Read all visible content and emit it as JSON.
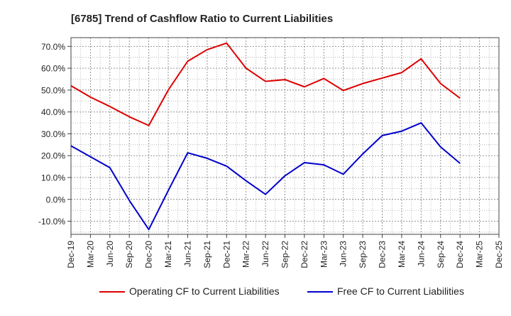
{
  "chart_data": {
    "type": "line",
    "title": "[6785]  Trend of Cashflow Ratio to Current Liabilities",
    "xlabel": "",
    "ylabel": "",
    "x_ticks": [
      "Dec-19",
      "Mar-20",
      "Jun-20",
      "Sep-20",
      "Dec-20",
      "Mar-21",
      "Jun-21",
      "Sep-21",
      "Dec-21",
      "Mar-22",
      "Jun-22",
      "Sep-22",
      "Dec-22",
      "Mar-23",
      "Jun-23",
      "Sep-23",
      "Dec-23",
      "Mar-24",
      "Jun-24",
      "Sep-24",
      "Dec-24",
      "Mar-25",
      "Dec-25"
    ],
    "y_ticks": [
      "-10.0%",
      "0.0%",
      "10.0%",
      "20.0%",
      "30.0%",
      "40.0%",
      "50.0%",
      "60.0%",
      "70.0%"
    ],
    "ylim": [
      -16,
      74
    ],
    "grid": true,
    "legend_position": "bottom",
    "series": [
      {
        "name": "Operating CF to Current Liabilities",
        "color": "#dd0000",
        "values": [
          52.0,
          46.8,
          42.5,
          37.8,
          33.8,
          50.0,
          63.2,
          68.5,
          71.5,
          60.0,
          54.0,
          54.8,
          51.5,
          55.3,
          49.8,
          53.0,
          55.5,
          58.0,
          64.3,
          53.0,
          46.3
        ]
      },
      {
        "name": "Free CF to Current Liabilities",
        "color": "#0000cc",
        "values": [
          24.5,
          19.5,
          14.5,
          -0.5,
          -13.8,
          4.0,
          21.3,
          18.8,
          15.2,
          8.5,
          2.3,
          10.8,
          16.8,
          15.8,
          11.5,
          20.8,
          29.2,
          31.2,
          35.0,
          24.0,
          16.5
        ]
      }
    ]
  }
}
